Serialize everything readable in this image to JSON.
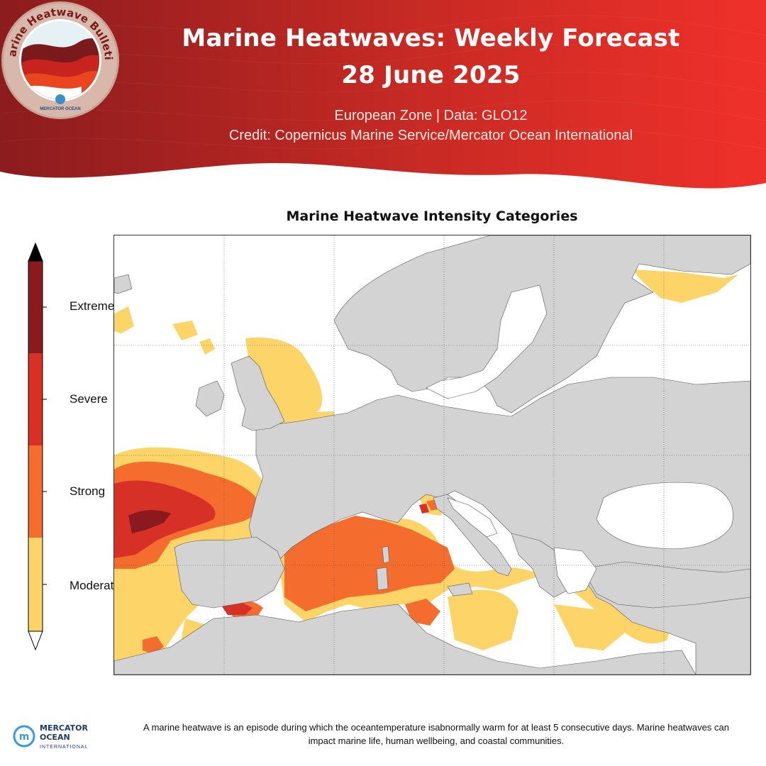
{
  "header": {
    "title_line1": "Marine Heatwaves: Weekly Forecast",
    "title_line2": "28 June 2025",
    "subtitle_line1": "European Zone  |  Data: GLO12",
    "subtitle_line2": "Credit: Copernicus Marine Service/Mercator Ocean International",
    "badge_text": "Marine Heatwave Bulletin",
    "badge_org": "MERCATOR OCEAN"
  },
  "map": {
    "title": "Marine Heatwave Intensity Categories",
    "land_color": "#d3d3d3",
    "sea_color": "#ffffff"
  },
  "legend": {
    "categories": [
      {
        "label": "Extreme",
        "color": "#8b1a1e"
      },
      {
        "label": "Severe",
        "color": "#d73027"
      },
      {
        "label": "Strong",
        "color": "#f46d2e"
      },
      {
        "label": "Moderate",
        "color": "#fdd468"
      }
    ]
  },
  "footer": {
    "logo_line1": "MERCATOR",
    "logo_line2": "OCEAN",
    "logo_line3": "INTERNATIONAL",
    "description": "A marine heatwave is an episode during which the oceantemperature isabnormally warm for at least 5 consecutive days. Marine heatwaves can impact marine life, human wellbeing, and coastal communities."
  }
}
